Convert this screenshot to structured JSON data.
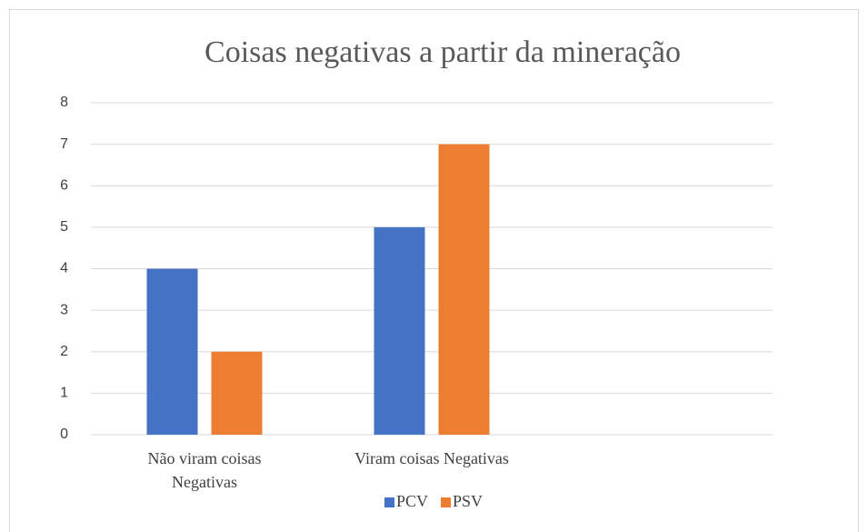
{
  "chart_data": {
    "type": "bar",
    "title": "Coisas negativas a partir da mineração",
    "categories": [
      "Não viram coisas Negativas",
      "Viram coisas Negativas",
      null
    ],
    "series": [
      {
        "name": "PCV",
        "color": "#4472c4",
        "values": [
          4,
          5,
          null
        ]
      },
      {
        "name": "PSV",
        "color": "#ed7d31",
        "values": [
          2,
          7,
          null
        ]
      }
    ],
    "ylim": [
      0,
      8
    ],
    "yticks": [
      0,
      1,
      2,
      3,
      4,
      5,
      6,
      7,
      8
    ],
    "grid": true,
    "legend": "bottom"
  }
}
